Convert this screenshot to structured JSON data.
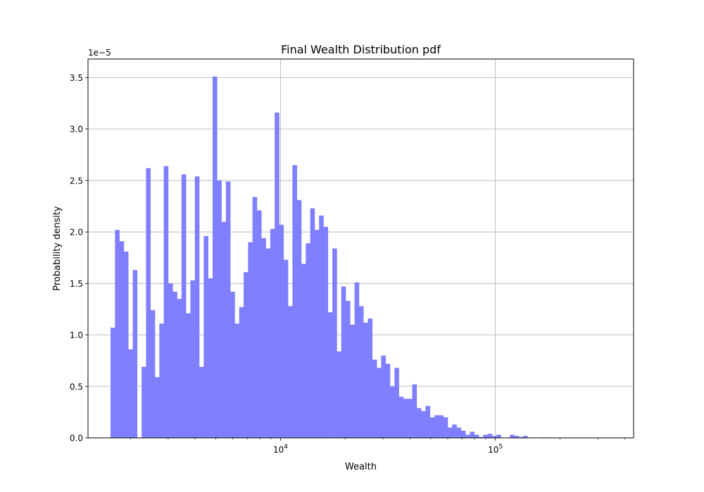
{
  "chart_data": {
    "type": "bar",
    "title": "Final Wealth Distribution pdf",
    "xlabel": "Wealth",
    "ylabel": "Probability density",
    "x_scale": "log",
    "xlim": [
      1270,
      440000
    ],
    "ylim": [
      0,
      3.68e-05
    ],
    "y_offset_text": "1e−5",
    "y_ticks": [
      0,
      5e-06,
      1e-05,
      1.5e-05,
      2e-05,
      2.5e-05,
      3e-05,
      3.5e-05
    ],
    "y_tick_labels": [
      "0.0",
      "0.5",
      "1.0",
      "1.5",
      "2.0",
      "2.5",
      "3.0",
      "3.5"
    ],
    "x_major_ticks": [
      10000,
      100000
    ],
    "x_major_tick_labels": [
      {
        "base": "10",
        "exp": "4"
      },
      {
        "base": "10",
        "exp": "5"
      }
    ],
    "x_minor_ticks": [
      2000,
      3000,
      4000,
      5000,
      6000,
      7000,
      8000,
      9000,
      20000,
      30000,
      40000,
      50000,
      60000,
      70000,
      80000,
      90000,
      200000,
      300000,
      400000
    ],
    "grid": true,
    "bar_color": "#7f7fff",
    "bin_start": 1617,
    "bin_ratio": 1.0487,
    "values": [
      1.07e-05,
      2.02e-05,
      1.91e-05,
      1.81e-05,
      8.6e-06,
      1.63e-05,
      0,
      6.9e-06,
      2.62e-05,
      1.24e-05,
      5.9e-06,
      1.11e-05,
      2.64e-05,
      1.5e-05,
      1.42e-05,
      1.35e-05,
      2.56e-05,
      1.21e-05,
      1.53e-05,
      2.54e-05,
      6.9e-06,
      1.96e-05,
      1.55e-05,
      3.51e-05,
      2.5e-05,
      2.1e-05,
      2.49e-05,
      1.42e-05,
      1.11e-05,
      1.27e-05,
      1.61e-05,
      1.9e-05,
      2.34e-05,
      2.21e-05,
      1.94e-05,
      1.84e-05,
      2.03e-05,
      3.16e-05,
      2.07e-05,
      1.73e-05,
      1.28e-05,
      2.65e-05,
      2.31e-05,
      1.69e-05,
      1.89e-05,
      2.23e-05,
      2.02e-05,
      2.16e-05,
      2.05e-05,
      1.22e-05,
      1.84e-05,
      8.4e-06,
      1.47e-05,
      1.33e-05,
      1.1e-05,
      1.51e-05,
      1.28e-05,
      1.12e-05,
      1.16e-05,
      7.6e-06,
      6.8e-06,
      8e-06,
      7.2e-06,
      5e-06,
      6.8e-06,
      4e-06,
      3.8e-06,
      3.8e-06,
      5.2e-06,
      2.9e-06,
      2.6e-06,
      3.1e-06,
      2e-06,
      2.2e-06,
      2.2e-06,
      2e-06,
      1e-06,
      1.3e-06,
      1e-06,
      7e-07,
      3e-07,
      6e-07,
      3e-07,
      1e-07,
      3e-07,
      4e-07,
      2e-07,
      3e-07,
      0,
      0,
      3e-07,
      2e-07,
      1e-07,
      2e-07,
      0,
      0,
      0,
      5e-08,
      5e-08,
      0
    ]
  }
}
